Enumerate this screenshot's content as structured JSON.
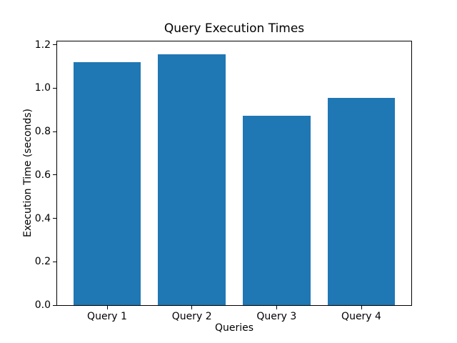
{
  "chart_data": {
    "type": "bar",
    "title": "Query Execution Times",
    "xlabel": "Queries",
    "ylabel": "Execution Time (seconds)",
    "categories": [
      "Query 1",
      "Query 2",
      "Query 3",
      "Query 4"
    ],
    "values": [
      1.12,
      1.157,
      0.873,
      0.956
    ],
    "bar_color": "#1f77b4",
    "axis_color": "#000000",
    "background_color": "#ffffff",
    "ylim": [
      0,
      1.215
    ],
    "yticks": [
      0.0,
      0.2,
      0.4,
      0.6,
      0.8,
      1.0,
      1.2
    ],
    "ytick_labels": [
      "0.0",
      "0.2",
      "0.4",
      "0.6",
      "0.8",
      "1.0",
      "1.2"
    ],
    "xlim": [
      -0.59,
      3.59
    ],
    "bar_width": 0.8,
    "grid": false,
    "legend": null
  }
}
